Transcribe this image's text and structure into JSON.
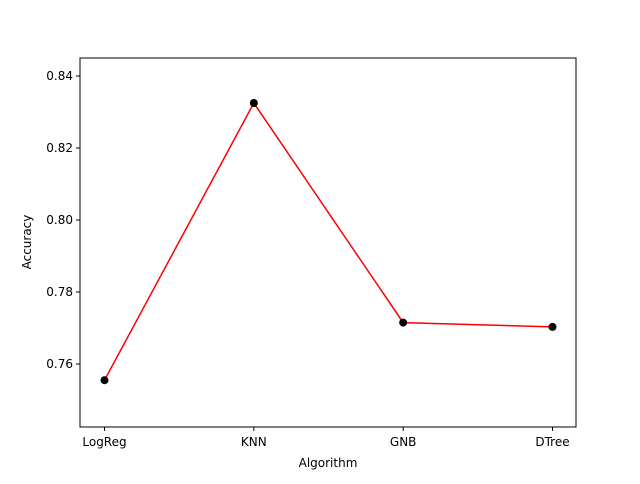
{
  "chart_data": {
    "type": "line",
    "categories": [
      "LogReg",
      "KNN",
      "GNB",
      "DTree"
    ],
    "series": [
      {
        "values": [
          0.7555,
          0.8325,
          0.7715,
          0.7703
        ],
        "line_color": "#ff0000",
        "marker_color": "#000000"
      }
    ],
    "xlabel": "Algorithm",
    "ylabel": "Accuracy",
    "ylim": [
      0.7425,
      0.845
    ],
    "yticks": [
      0.76,
      0.78,
      0.8,
      0.82,
      0.84
    ],
    "ytick_labels": [
      "0.76",
      "0.78",
      "0.80",
      "0.82",
      "0.84"
    ],
    "grid": false
  }
}
